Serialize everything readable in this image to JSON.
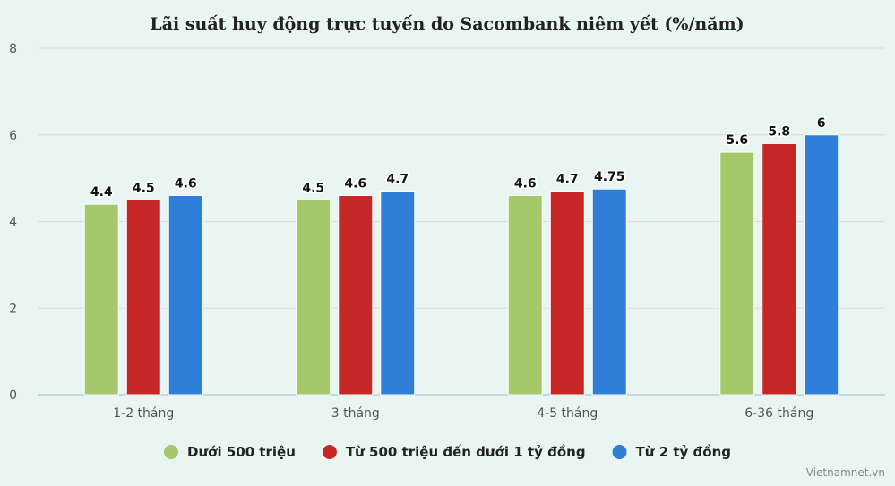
{
  "chart_data": {
    "type": "bar",
    "title": "Lãi suất huy động trực tuyến do Sacombank niêm yết (%/năm)",
    "categories": [
      "1-2 tháng",
      "3 tháng",
      "4-5 tháng",
      "6-36 tháng"
    ],
    "series": [
      {
        "name": "Dưới 500 triệu",
        "color": "#a5c96a",
        "values": [
          4.4,
          4.5,
          4.6,
          5.6
        ],
        "labels": [
          "4.4",
          "4.5",
          "4.6",
          "5.6"
        ]
      },
      {
        "name": "Từ 500 triệu đến dưới 1 tỷ đồng",
        "color": "#c62828",
        "values": [
          4.5,
          4.6,
          4.7,
          5.8
        ],
        "labels": [
          "4.5",
          "4.6",
          "4.7",
          "5.8"
        ]
      },
      {
        "name": "Từ 2 tỷ đồng",
        "color": "#2f7fd9",
        "values": [
          4.6,
          4.7,
          4.75,
          6
        ],
        "labels": [
          "4.6",
          "4.7",
          "4.75",
          "6"
        ]
      }
    ],
    "yticks": [
      0,
      2,
      4,
      6,
      8
    ],
    "ylim": [
      0,
      8
    ],
    "xlabel": "",
    "ylabel": "",
    "legend": "bottom-center"
  },
  "watermark": "Vietnamnet.vn"
}
